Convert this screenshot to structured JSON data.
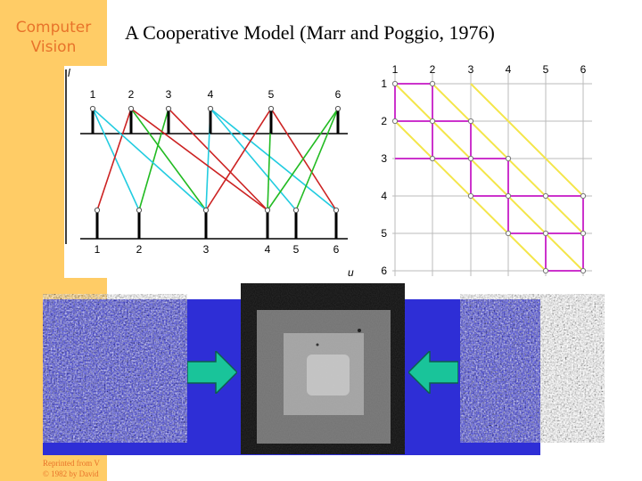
{
  "sidebar": {
    "title_line1": "Computer",
    "title_line2": "Vision"
  },
  "slide": {
    "title": "A Cooperative Model  (Marr and Poggio, 1976)"
  },
  "left_diagram": {
    "top_axis_label": "l",
    "bottom_axis_label": "u",
    "top_points": [
      "1",
      "2",
      "3",
      "4",
      "5",
      "6"
    ],
    "bottom_points": [
      "1",
      "2",
      "3",
      "4",
      "5",
      "6"
    ],
    "colors": {
      "cyan": "#22cce0",
      "red": "#cc2222",
      "green": "#22bb22"
    }
  },
  "right_grid": {
    "column_labels": [
      "1",
      "2",
      "3",
      "4",
      "5",
      "6"
    ],
    "row_labels": [
      "1",
      "2",
      "3",
      "4",
      "5",
      "6"
    ],
    "colors": {
      "diagonal": "#f4e64a",
      "path": "#cc33cc",
      "grid": "#bbbbbb"
    }
  },
  "credit": {
    "line1": "Reprinted from V",
    "line2": "© 1982 by David"
  },
  "colors": {
    "sidebar": "#ffcc66",
    "accent": "#e8732a",
    "band": "#2e2ed6",
    "arrow": "#19c49a"
  }
}
